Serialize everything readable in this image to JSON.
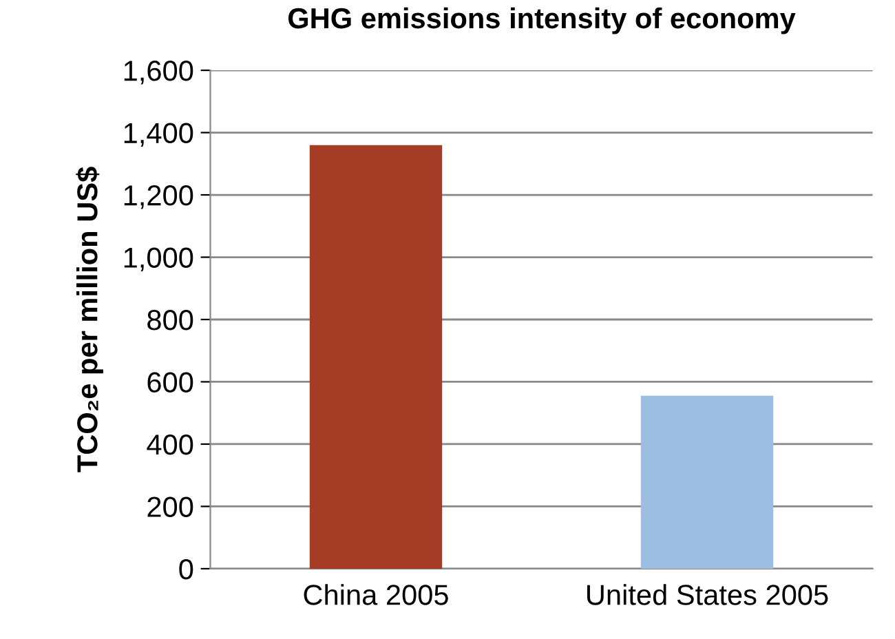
{
  "chart_data": {
    "type": "bar",
    "title": "GHG emissions intensity of economy",
    "ylabel": "TCO₂e per million US$",
    "categories": [
      "China 2005",
      "United States 2005"
    ],
    "values": [
      1360,
      555
    ],
    "colors": [
      "#a53c26",
      "#9dbde3"
    ],
    "ylim": [
      0,
      1600
    ],
    "yticks": [
      {
        "value": 0,
        "label": "0"
      },
      {
        "value": 200,
        "label": "200"
      },
      {
        "value": 400,
        "label": "400"
      },
      {
        "value": 600,
        "label": "600"
      },
      {
        "value": 800,
        "label": "800"
      },
      {
        "value": 1000,
        "label": "1,000"
      },
      {
        "value": 1200,
        "label": "1,200"
      },
      {
        "value": 1400,
        "label": "1,400"
      },
      {
        "value": 1600,
        "label": "1,600"
      }
    ],
    "grid": "y",
    "legend": false
  }
}
